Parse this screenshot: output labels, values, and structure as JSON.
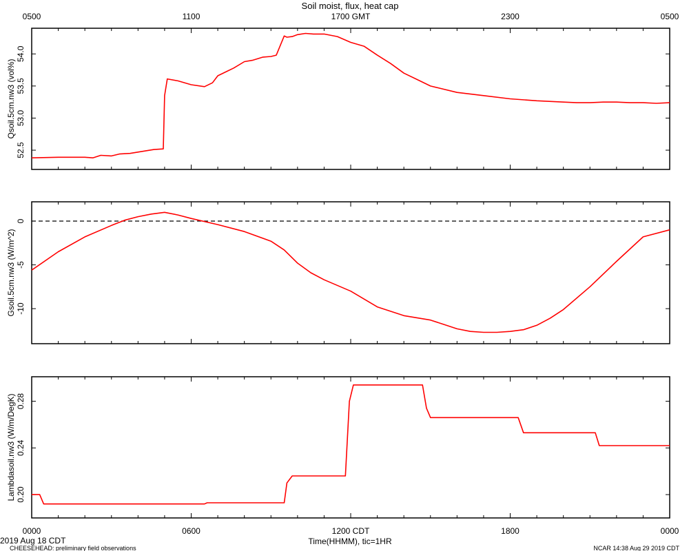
{
  "title": "Soil moist, flux, heat cap",
  "top_axis": {
    "tick_labels": [
      "0500",
      "1100",
      "1700 GMT",
      "2300",
      "0500"
    ]
  },
  "bottom_axis": {
    "tick_labels": [
      "0000",
      "0600",
      "1200 CDT",
      "1800",
      "0000"
    ],
    "label": "Time(HHMM), tic=1HR",
    "start_date": "2019 Aug 18 CDT"
  },
  "footer": {
    "left": "CHEESEHEAD: preliminary field observations",
    "right": "NCAR 14:38 Aug 29 2019 CDT"
  },
  "colors": {
    "series": "#ff0000",
    "frame": "#000000",
    "zero_line": "#000000"
  },
  "chart_data": [
    {
      "type": "line",
      "ylabel": "Qsoil.5cm.nw3 (vol%)",
      "x_unit": "hours CDT",
      "xlim": [
        0,
        24
      ],
      "ylim": [
        52.2,
        54.4
      ],
      "yticks": [
        "52.5",
        "53.0",
        "53.5",
        "54.0"
      ],
      "ytick_values": [
        52.5,
        53.0,
        53.5,
        54.0
      ],
      "zero_line": false,
      "x": [
        0,
        1,
        2,
        2.3,
        2.6,
        3,
        3.3,
        3.7,
        4,
        4.6,
        4.95,
        5.0,
        5.1,
        5.5,
        6.0,
        6.5,
        6.8,
        7.0,
        7.3,
        7.6,
        8.0,
        8.3,
        8.7,
        9.0,
        9.2,
        9.5,
        9.6,
        9.8,
        10.0,
        10.3,
        10.6,
        11.0,
        11.5,
        12.0,
        12.5,
        13.0,
        13.5,
        14.0,
        14.5,
        15.0,
        16.0,
        17.0,
        18.0,
        19.0,
        20.0,
        20.5,
        21.0,
        21.5,
        22.0,
        22.5,
        23.0,
        23.5,
        24.0
      ],
      "y": [
        52.38,
        52.39,
        52.39,
        52.38,
        52.42,
        52.41,
        52.44,
        52.45,
        52.47,
        52.51,
        52.52,
        53.35,
        53.61,
        53.58,
        53.52,
        53.49,
        53.55,
        53.66,
        53.72,
        53.78,
        53.88,
        53.9,
        53.95,
        53.96,
        53.98,
        54.28,
        54.26,
        54.27,
        54.3,
        54.32,
        54.31,
        54.31,
        54.27,
        54.18,
        54.12,
        53.98,
        53.85,
        53.7,
        53.6,
        53.5,
        53.4,
        53.35,
        53.3,
        53.27,
        53.25,
        53.24,
        53.24,
        53.25,
        53.25,
        53.24,
        53.24,
        53.23,
        53.24
      ]
    },
    {
      "type": "line",
      "ylabel": "Gsoil.5cm.nw3 (W/m^2)",
      "x_unit": "hours CDT",
      "xlim": [
        0,
        24
      ],
      "ylim": [
        -14,
        2.2
      ],
      "yticks": [
        "0",
        "-5",
        "-10"
      ],
      "ytick_values": [
        0,
        -5,
        -10
      ],
      "zero_line": true,
      "x": [
        0,
        1,
        2,
        3,
        3.5,
        4,
        4.5,
        5,
        5.5,
        6,
        7,
        8,
        9,
        9.5,
        10,
        10.5,
        11,
        12,
        13,
        14,
        15,
        15.5,
        16,
        16.5,
        17,
        17.5,
        18,
        18.5,
        19,
        19.5,
        20,
        21,
        22,
        23,
        24
      ],
      "y": [
        -5.6,
        -3.5,
        -1.8,
        -0.5,
        0.1,
        0.5,
        0.8,
        1.0,
        0.7,
        0.3,
        -0.4,
        -1.2,
        -2.3,
        -3.3,
        -4.8,
        -5.9,
        -6.7,
        -8.0,
        -9.8,
        -10.8,
        -11.3,
        -11.8,
        -12.3,
        -12.6,
        -12.7,
        -12.7,
        -12.6,
        -12.4,
        -11.9,
        -11.1,
        -10.1,
        -7.5,
        -4.6,
        -1.8,
        -1.0
      ]
    },
    {
      "type": "line",
      "ylabel": "Lambdasoil.nw3 (W/m/DegK)",
      "x_unit": "hours CDT",
      "xlim": [
        0,
        24
      ],
      "ylim": [
        0.18,
        0.301
      ],
      "yticks": [
        "0.20",
        "0.24",
        "0.28"
      ],
      "ytick_values": [
        0.2,
        0.24,
        0.28
      ],
      "zero_line": false,
      "x": [
        0,
        0.3,
        0.45,
        6.5,
        6.6,
        9.5,
        9.6,
        9.8,
        11.8,
        11.95,
        12.1,
        14.7,
        14.85,
        15.0,
        18.3,
        18.5,
        21.2,
        21.35,
        24
      ],
      "y": [
        0.2,
        0.2,
        0.192,
        0.192,
        0.193,
        0.193,
        0.21,
        0.216,
        0.216,
        0.28,
        0.294,
        0.294,
        0.274,
        0.266,
        0.266,
        0.253,
        0.253,
        0.242,
        0.242
      ]
    }
  ]
}
